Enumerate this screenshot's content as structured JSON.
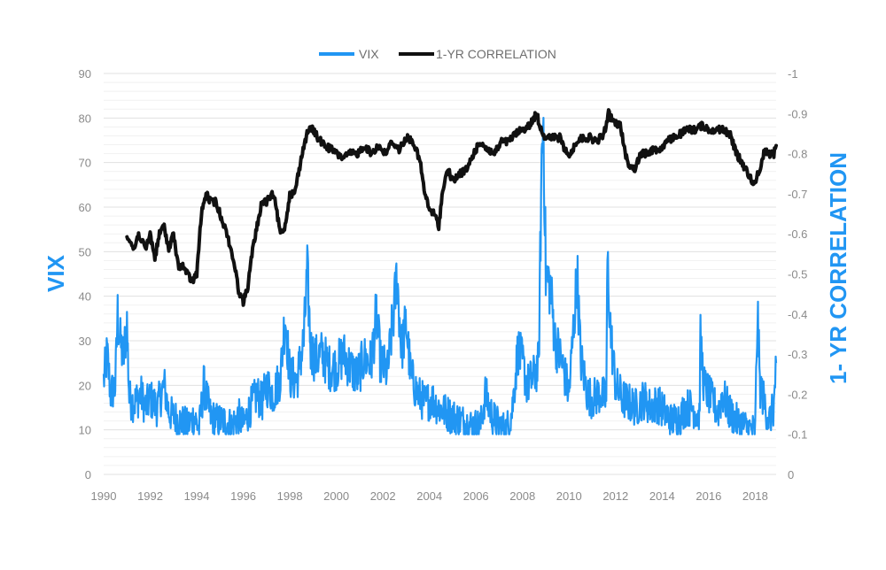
{
  "chart_data": {
    "type": "line",
    "legend_position": "top-center",
    "grid": true,
    "colors": {
      "vix": "#2196f3",
      "correlation": "#111111",
      "axis_title": "#2196f3",
      "tick": "#8a8a8a",
      "grid": "#e0e0e0"
    },
    "xlabel": "",
    "ylabel_left": "VIX",
    "ylabel_right": "1- YR CORRELATION",
    "xlim": [
      1990,
      2018.9
    ],
    "ylim_left": [
      0,
      90
    ],
    "ylim_right": [
      0,
      -1
    ],
    "x_ticks": [
      "1990",
      "1992",
      "1994",
      "1996",
      "1998",
      "2000",
      "2002",
      "2004",
      "2006",
      "2008",
      "2010",
      "2012",
      "2014",
      "2016",
      "2018"
    ],
    "y_left_ticks": [
      "0",
      "10",
      "20",
      "30",
      "40",
      "50",
      "60",
      "70",
      "80",
      "90"
    ],
    "y_right_ticks": [
      "0",
      "-0.1",
      "-0.2",
      "-0.3",
      "-0.4",
      "-0.5",
      "-0.6",
      "-0.7",
      "-0.8",
      "-0.9",
      "-1"
    ],
    "series": [
      {
        "name": "VIX",
        "axis": "left",
        "x": [
          1990.0,
          1990.15,
          1990.3,
          1990.5,
          1990.6,
          1990.7,
          1990.85,
          1991.0,
          1991.1,
          1991.3,
          1991.6,
          1991.8,
          1992.0,
          1992.3,
          1992.6,
          1992.8,
          1993.0,
          1993.3,
          1993.6,
          1993.9,
          1994.1,
          1994.3,
          1994.6,
          1994.9,
          1995.2,
          1995.5,
          1995.8,
          1996.0,
          1996.3,
          1996.6,
          1996.8,
          1997.0,
          1997.3,
          1997.6,
          1997.8,
          1998.0,
          1998.3,
          1998.6,
          1998.75,
          1998.9,
          1999.1,
          1999.4,
          1999.7,
          2000.0,
          2000.3,
          2000.6,
          2000.9,
          2001.2,
          2001.5,
          2001.72,
          2001.9,
          2002.2,
          2002.5,
          2002.6,
          2002.8,
          2003.0,
          2003.2,
          2003.5,
          2003.8,
          2004.1,
          2004.4,
          2004.7,
          2005.0,
          2005.4,
          2005.8,
          2006.2,
          2006.4,
          2006.7,
          2007.0,
          2007.3,
          2007.55,
          2007.8,
          2008.0,
          2008.2,
          2008.5,
          2008.7,
          2008.82,
          2008.9,
          2009.0,
          2009.2,
          2009.4,
          2009.7,
          2010.0,
          2010.35,
          2010.5,
          2010.8,
          2011.0,
          2011.3,
          2011.6,
          2011.65,
          2011.8,
          2012.0,
          2012.3,
          2012.6,
          2012.9,
          2013.2,
          2013.5,
          2013.8,
          2014.1,
          2014.4,
          2014.8,
          2015.0,
          2015.3,
          2015.6,
          2015.65,
          2015.8,
          2016.1,
          2016.4,
          2016.6,
          2016.9,
          2017.2,
          2017.5,
          2017.8,
          2018.0,
          2018.1,
          2018.2,
          2018.4,
          2018.6,
          2018.8,
          2018.9
        ],
        "y": [
          21,
          27,
          18,
          20,
          36,
          30,
          26,
          34,
          17,
          16,
          18,
          15,
          17,
          15,
          20,
          14,
          13,
          12,
          11,
          13,
          10,
          20,
          13,
          12,
          12,
          11,
          13,
          11,
          15,
          18,
          16,
          20,
          18,
          22,
          36,
          22,
          21,
          30,
          45,
          28,
          26,
          27,
          24,
          24,
          27,
          24,
          22,
          26,
          25,
          36,
          25,
          23,
          38,
          45,
          28,
          34,
          22,
          18,
          16,
          17,
          15,
          14,
          13,
          12,
          11,
          11,
          18,
          13,
          11,
          10,
          14,
          28,
          25,
          20,
          22,
          25,
          70,
          80,
          45,
          42,
          30,
          25,
          18,
          45,
          26,
          18,
          17,
          18,
          17,
          48,
          31,
          20,
          17,
          16,
          15,
          17,
          15,
          16,
          14,
          12,
          13,
          15,
          15,
          13,
          30,
          20,
          17,
          14,
          18,
          14,
          12,
          11,
          10,
          10,
          37,
          20,
          16,
          12,
          15,
          25
        ]
      },
      {
        "name": "1-YR CORRELATION",
        "axis": "right",
        "x": [
          1991.0,
          1991.3,
          1991.5,
          1991.8,
          1992.0,
          1992.2,
          1992.4,
          1992.6,
          1992.8,
          1993.0,
          1993.2,
          1993.4,
          1993.6,
          1993.8,
          1994.0,
          1994.2,
          1994.4,
          1994.6,
          1994.8,
          1995.0,
          1995.3,
          1995.6,
          1995.8,
          1996.0,
          1996.2,
          1996.4,
          1996.6,
          1996.8,
          1997.0,
          1997.3,
          1997.6,
          1997.8,
          1998.0,
          1998.2,
          1998.4,
          1998.6,
          1998.8,
          1999.0,
          1999.2,
          1999.5,
          1999.8,
          2000.0,
          2000.3,
          2000.6,
          2000.9,
          2001.2,
          2001.5,
          2001.8,
          2002.1,
          2002.4,
          2002.7,
          2003.0,
          2003.3,
          2003.6,
          2003.8,
          2004.0,
          2004.2,
          2004.4,
          2004.6,
          2004.8,
          2005.0,
          2005.3,
          2005.6,
          2005.9,
          2006.2,
          2006.5,
          2006.8,
          2007.1,
          2007.4,
          2007.7,
          2008.0,
          2008.3,
          2008.6,
          2008.8,
          2009.0,
          2009.3,
          2009.6,
          2009.9,
          2010.1,
          2010.3,
          2010.6,
          2010.9,
          2011.2,
          2011.5,
          2011.7,
          2011.9,
          2012.2,
          2012.5,
          2012.8,
          2013.1,
          2013.3,
          2013.6,
          2013.9,
          2014.2,
          2014.5,
          2014.8,
          2015.1,
          2015.4,
          2015.7,
          2016.0,
          2016.3,
          2016.6,
          2016.9,
          2017.2,
          2017.4,
          2017.6,
          2017.8,
          2018.0,
          2018.1,
          2018.2,
          2018.4,
          2018.6,
          2018.8,
          2018.9
        ],
        "y": [
          -0.6,
          -0.56,
          -0.6,
          -0.56,
          -0.6,
          -0.54,
          -0.6,
          -0.62,
          -0.56,
          -0.6,
          -0.52,
          -0.52,
          -0.5,
          -0.48,
          -0.5,
          -0.65,
          -0.7,
          -0.68,
          -0.68,
          -0.65,
          -0.6,
          -0.53,
          -0.46,
          -0.43,
          -0.47,
          -0.56,
          -0.62,
          -0.68,
          -0.68,
          -0.7,
          -0.6,
          -0.62,
          -0.7,
          -0.7,
          -0.76,
          -0.82,
          -0.86,
          -0.86,
          -0.84,
          -0.82,
          -0.81,
          -0.8,
          -0.79,
          -0.8,
          -0.8,
          -0.82,
          -0.8,
          -0.82,
          -0.8,
          -0.83,
          -0.81,
          -0.84,
          -0.83,
          -0.78,
          -0.7,
          -0.66,
          -0.65,
          -0.62,
          -0.72,
          -0.76,
          -0.73,
          -0.75,
          -0.76,
          -0.8,
          -0.83,
          -0.81,
          -0.8,
          -0.83,
          -0.83,
          -0.85,
          -0.86,
          -0.87,
          -0.9,
          -0.86,
          -0.84,
          -0.84,
          -0.84,
          -0.8,
          -0.8,
          -0.83,
          -0.84,
          -0.84,
          -0.83,
          -0.85,
          -0.9,
          -0.88,
          -0.87,
          -0.78,
          -0.76,
          -0.8,
          -0.8,
          -0.81,
          -0.81,
          -0.83,
          -0.84,
          -0.85,
          -0.86,
          -0.86,
          -0.87,
          -0.86,
          -0.86,
          -0.86,
          -0.85,
          -0.8,
          -0.78,
          -0.76,
          -0.74,
          -0.72,
          -0.75,
          -0.76,
          -0.81,
          -0.8,
          -0.8,
          -0.82
        ]
      }
    ]
  }
}
